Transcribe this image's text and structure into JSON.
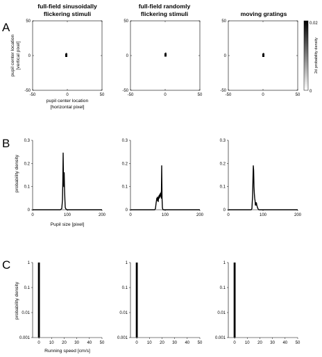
{
  "panel_letters": [
    "A",
    "B",
    "C"
  ],
  "columns": [
    {
      "title_line1": "full-field sinusoidally",
      "title_line2": "flickering stimuli"
    },
    {
      "title_line1": "full-field randomly",
      "title_line2": "flickering stimuli"
    },
    {
      "title_line1": "moving gratings",
      "title_line2": ""
    }
  ],
  "chart_data": [
    {
      "panel": "A",
      "type": "heatmap",
      "xlabel_line1": "pupil center location",
      "xlabel_line2": "[horizontal pixel]",
      "ylabel_line1": "pupil center location",
      "ylabel_line2": "[vertical pixel]",
      "xlim": [
        -50,
        50
      ],
      "ylim": [
        -50,
        50
      ],
      "x_ticks": [
        "-50",
        "0",
        "50"
      ],
      "y_ticks": [
        "50",
        "0",
        "-50"
      ],
      "colorbar": {
        "label": "2d probability density",
        "min": 0,
        "max": 0.02,
        "ticks": [
          "0.02",
          "0"
        ],
        "colormap": "gray-reversed"
      },
      "blobs": [
        {
          "x": -1.5,
          "y": 0.5
        },
        {
          "x": 0.5,
          "y": 1.0
        },
        {
          "x": 0.5,
          "y": 0.5
        }
      ]
    },
    {
      "panel": "B",
      "type": "line",
      "xlabel": "Pupil size [pixel]",
      "ylabel": "probability density",
      "xlim": [
        0,
        200
      ],
      "ylim": [
        0,
        0.3
      ],
      "x_ticks": [
        "0",
        "100",
        "200"
      ],
      "y_ticks": [
        "0.3",
        "0.2",
        "0.1",
        "0"
      ],
      "series": [
        {
          "x": [
            80,
            84,
            86,
            87,
            88,
            89,
            90,
            91,
            92,
            93,
            94,
            96,
            100
          ],
          "y": [
            0,
            0.005,
            0.04,
            0.12,
            0.245,
            0.13,
            0.1,
            0.16,
            0.09,
            0.045,
            0.01,
            0.003,
            0
          ]
        },
        {
          "x": [
            70,
            72,
            74,
            76,
            77,
            78,
            79,
            80,
            81,
            82,
            83,
            84,
            85,
            86,
            87,
            88,
            89,
            90,
            91,
            92,
            93,
            94
          ],
          "y": [
            0,
            0.005,
            0.03,
            0.05,
            0.04,
            0.055,
            0.045,
            0.035,
            0.05,
            0.06,
            0.05,
            0.065,
            0.055,
            0.07,
            0.06,
            0.075,
            0.05,
            0.19,
            0.05,
            0.01,
            0.003,
            0
          ]
        },
        {
          "x": [
            66,
            68,
            70,
            71,
            72,
            73,
            74,
            75,
            76,
            77,
            78,
            79,
            80,
            81,
            82,
            84,
            86,
            88
          ],
          "y": [
            0,
            0.005,
            0.06,
            0.13,
            0.19,
            0.17,
            0.1,
            0.07,
            0.05,
            0.04,
            0.02,
            0.03,
            0.02,
            0.03,
            0.02,
            0.01,
            0.003,
            0
          ]
        }
      ]
    },
    {
      "panel": "C",
      "type": "bar",
      "xlabel": "Running speed [cm/s]",
      "ylabel": "probability density",
      "xlim": [
        -5,
        50
      ],
      "ylim": [
        0.001,
        1
      ],
      "yscale": "log",
      "x_ticks": [
        "0",
        "10",
        "20",
        "30",
        "40",
        "50"
      ],
      "y_ticks": [
        "1",
        "0.1",
        "0.01",
        "0.001"
      ],
      "series": [
        {
          "x": [
            0
          ],
          "values": [
            1
          ]
        },
        {
          "x": [
            0
          ],
          "values": [
            1
          ]
        },
        {
          "x": [
            0
          ],
          "values": [
            1
          ]
        }
      ]
    }
  ]
}
